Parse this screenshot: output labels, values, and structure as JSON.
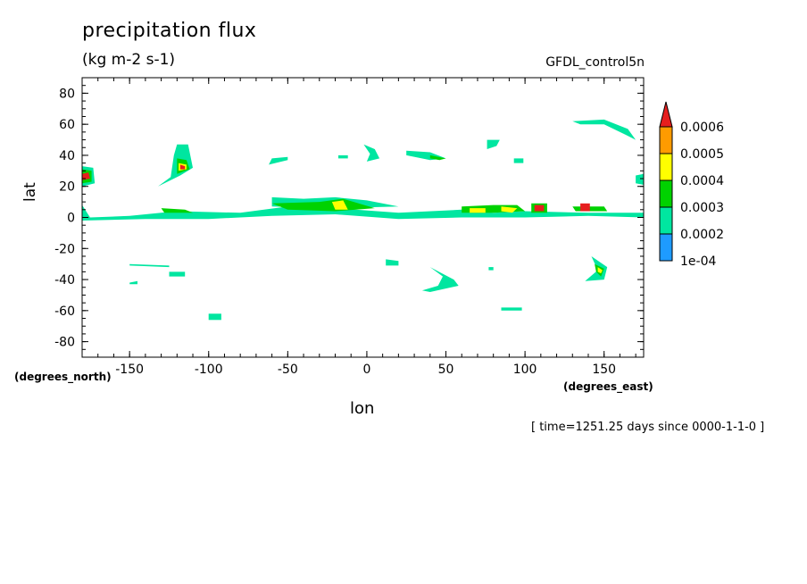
{
  "chart_data": {
    "type": "heatmap",
    "title": "precipitation flux",
    "subtitle": "(kg m-2 s-1)",
    "source_label": "GFDL_control5n",
    "xlabel": "lon",
    "ylabel": "lat",
    "x_units": "(degrees_east)",
    "y_units": "(degrees_north)",
    "time_label": "[ time=1251.25 days since 0000-1-1-0 ]",
    "xlim": [
      -180,
      175
    ],
    "ylim": [
      -90,
      90
    ],
    "x_ticks": [
      "-150",
      "-100",
      "-50",
      "0",
      "50",
      "100",
      "150"
    ],
    "y_ticks": [
      "80",
      "60",
      "40",
      "20",
      "0",
      "-20",
      "-40",
      "-60",
      "-80"
    ],
    "grid": false,
    "colorbar": {
      "labels": [
        "1e-04",
        "0.0002",
        "0.0003",
        "0.0004",
        "0.0005",
        "0.0006"
      ],
      "colors": [
        "#1e9bff",
        "#00e6a0",
        "#00d200",
        "#ffff00",
        "#ff9b00",
        "#e61e1e"
      ]
    },
    "features": [
      {
        "name": "itcz-band",
        "level": 1,
        "points": [
          [
            -180,
            8
          ],
          [
            -175,
            0
          ],
          [
            -150,
            1
          ],
          [
            -140,
            2
          ],
          [
            -120,
            4
          ],
          [
            -80,
            3
          ],
          [
            -50,
            7
          ],
          [
            -20,
            6
          ],
          [
            20,
            3
          ],
          [
            60,
            5
          ],
          [
            80,
            3
          ],
          [
            100,
            4
          ],
          [
            140,
            3
          ],
          [
            175,
            3
          ],
          [
            175,
            0
          ],
          [
            140,
            1
          ],
          [
            100,
            0
          ],
          [
            60,
            0
          ],
          [
            20,
            -1
          ],
          [
            -20,
            2
          ],
          [
            -60,
            1
          ],
          [
            -100,
            -1
          ],
          [
            -140,
            -1
          ],
          [
            -180,
            -2
          ]
        ]
      },
      {
        "name": "itcz-band-upper",
        "level": 1,
        "points": [
          [
            -60,
            13
          ],
          [
            -40,
            12
          ],
          [
            -20,
            13
          ],
          [
            0,
            11
          ],
          [
            20,
            7
          ],
          [
            -20,
            6
          ],
          [
            -60,
            7
          ]
        ]
      },
      {
        "name": "itcz-core-a",
        "level": 2,
        "points": [
          [
            -130,
            6
          ],
          [
            -115,
            5
          ],
          [
            -110,
            3
          ],
          [
            -128,
            3
          ]
        ]
      },
      {
        "name": "itcz-core-b",
        "level": 2,
        "points": [
          [
            -60,
            9
          ],
          [
            -30,
            10
          ],
          [
            -15,
            12
          ],
          [
            5,
            6
          ],
          [
            -20,
            4
          ],
          [
            -50,
            5
          ]
        ]
      },
      {
        "name": "itcz-core-c",
        "level": 2,
        "points": [
          [
            60,
            7
          ],
          [
            80,
            8
          ],
          [
            95,
            8
          ],
          [
            100,
            4
          ],
          [
            80,
            3
          ],
          [
            60,
            3
          ]
        ]
      },
      {
        "name": "itcz-core-d",
        "level": 2,
        "points": [
          [
            130,
            7
          ],
          [
            150,
            7
          ],
          [
            152,
            4
          ],
          [
            132,
            4
          ]
        ]
      },
      {
        "name": "itcz-lime-a",
        "level": 3,
        "points": [
          [
            -22,
            10
          ],
          [
            -15,
            11
          ],
          [
            -12,
            5
          ],
          [
            -20,
            5
          ]
        ]
      },
      {
        "name": "itcz-lime-b",
        "level": 3,
        "points": [
          [
            65,
            6
          ],
          [
            75,
            6
          ],
          [
            75,
            3
          ],
          [
            65,
            3
          ]
        ]
      },
      {
        "name": "itcz-lime-c",
        "level": 3,
        "points": [
          [
            85,
            7
          ],
          [
            95,
            6
          ],
          [
            92,
            3
          ],
          [
            85,
            4
          ]
        ]
      },
      {
        "name": "max-west-edge",
        "level": 5,
        "points": [
          [
            -180,
            28
          ],
          [
            -176,
            29
          ],
          [
            -175,
            25
          ],
          [
            -180,
            24
          ]
        ]
      },
      {
        "name": "west-edge-blob",
        "level": 1,
        "points": [
          [
            -180,
            33
          ],
          [
            -173,
            32
          ],
          [
            -172,
            22
          ],
          [
            -180,
            20
          ]
        ]
      },
      {
        "name": "west-edge-inner",
        "level": 2,
        "points": [
          [
            -180,
            31
          ],
          [
            -174,
            30
          ],
          [
            -174,
            23
          ],
          [
            -180,
            22
          ]
        ]
      },
      {
        "name": "pacific-storm",
        "level": 1,
        "points": [
          [
            -120,
            47
          ],
          [
            -113,
            47
          ],
          [
            -110,
            32
          ],
          [
            -118,
            27
          ],
          [
            -128,
            22
          ],
          [
            -132,
            20
          ],
          [
            -124,
            26
          ],
          [
            -122,
            40
          ]
        ]
      },
      {
        "name": "pacific-storm-inner",
        "level": 2,
        "points": [
          [
            -120,
            38
          ],
          [
            -114,
            37
          ],
          [
            -112,
            31
          ],
          [
            -120,
            28
          ]
        ]
      },
      {
        "name": "pacific-storm-core",
        "level": 3,
        "points": [
          [
            -119,
            35
          ],
          [
            -114,
            34
          ],
          [
            -114,
            31
          ],
          [
            -119,
            30
          ]
        ]
      },
      {
        "name": "pacific-storm-max",
        "level": 5,
        "points": [
          [
            -118,
            34
          ],
          [
            -115,
            33
          ],
          [
            -115,
            31
          ],
          [
            -118,
            31
          ]
        ]
      },
      {
        "name": "atlantic-streak",
        "level": 1,
        "points": [
          [
            -60,
            38
          ],
          [
            -50,
            39
          ],
          [
            -50,
            37
          ],
          [
            -62,
            34
          ]
        ]
      },
      {
        "name": "atlantic-blob",
        "level": 1,
        "points": [
          [
            -18,
            40
          ],
          [
            -12,
            40
          ],
          [
            -12,
            38
          ],
          [
            -18,
            38
          ]
        ]
      },
      {
        "name": "mid-arc",
        "level": 1,
        "points": [
          [
            -2,
            47
          ],
          [
            5,
            44
          ],
          [
            8,
            38
          ],
          [
            0,
            36
          ],
          [
            2,
            41
          ]
        ]
      },
      {
        "name": "eurasia-streak",
        "level": 1,
        "points": [
          [
            25,
            43
          ],
          [
            40,
            42
          ],
          [
            50,
            38
          ],
          [
            40,
            37
          ],
          [
            25,
            40
          ]
        ]
      },
      {
        "name": "eurasia-core",
        "level": 2,
        "points": [
          [
            40,
            40
          ],
          [
            50,
            38
          ],
          [
            46,
            37
          ],
          [
            40,
            38
          ]
        ]
      },
      {
        "name": "north-small",
        "level": 1,
        "points": [
          [
            76,
            50
          ],
          [
            84,
            50
          ],
          [
            82,
            46
          ],
          [
            76,
            44
          ]
        ]
      },
      {
        "name": "north-dot",
        "level": 1,
        "points": [
          [
            93,
            38
          ],
          [
            99,
            38
          ],
          [
            99,
            35
          ],
          [
            93,
            35
          ]
        ]
      },
      {
        "name": "max-east-b",
        "level": 5,
        "points": [
          [
            106,
            8
          ],
          [
            112,
            8
          ],
          [
            112,
            4
          ],
          [
            106,
            4
          ]
        ]
      },
      {
        "name": "east-b-halo",
        "level": 2,
        "points": [
          [
            104,
            9
          ],
          [
            114,
            9
          ],
          [
            114,
            3
          ],
          [
            104,
            3
          ]
        ]
      },
      {
        "name": "max-east-c",
        "level": 5,
        "points": [
          [
            135,
            9
          ],
          [
            141,
            9
          ],
          [
            141,
            4
          ],
          [
            135,
            4
          ]
        ]
      },
      {
        "name": "pacific-arc",
        "level": 1,
        "points": [
          [
            130,
            62
          ],
          [
            150,
            63
          ],
          [
            165,
            57
          ],
          [
            170,
            50
          ],
          [
            164,
            53
          ],
          [
            150,
            60
          ],
          [
            135,
            60
          ]
        ]
      },
      {
        "name": "east-edge",
        "level": 1,
        "points": [
          [
            170,
            27
          ],
          [
            175,
            28
          ],
          [
            175,
            21
          ],
          [
            170,
            22
          ]
        ]
      },
      {
        "name": "south-streak-a",
        "level": 1,
        "points": [
          [
            -150,
            -30
          ],
          [
            -125,
            -31
          ],
          [
            -125,
            -32
          ],
          [
            -150,
            -31
          ]
        ]
      },
      {
        "name": "south-blob-a",
        "level": 1,
        "points": [
          [
            -125,
            -35
          ],
          [
            -115,
            -35
          ],
          [
            -115,
            -38
          ],
          [
            -125,
            -38
          ]
        ]
      },
      {
        "name": "south-blob-b",
        "level": 1,
        "points": [
          [
            -150,
            -42
          ],
          [
            -145,
            -41
          ],
          [
            -145,
            -43
          ],
          [
            -150,
            -43
          ]
        ]
      },
      {
        "name": "south-blob-c",
        "level": 1,
        "points": [
          [
            -100,
            -62
          ],
          [
            -92,
            -62
          ],
          [
            -92,
            -66
          ],
          [
            -100,
            -66
          ]
        ]
      },
      {
        "name": "south-arc",
        "level": 1,
        "points": [
          [
            40,
            -32
          ],
          [
            55,
            -40
          ],
          [
            58,
            -44
          ],
          [
            40,
            -48
          ],
          [
            35,
            -47
          ],
          [
            45,
            -44
          ],
          [
            48,
            -38
          ]
        ]
      },
      {
        "name": "south-blob-d",
        "level": 1,
        "points": [
          [
            12,
            -27
          ],
          [
            20,
            -28
          ],
          [
            20,
            -31
          ],
          [
            12,
            -31
          ]
        ]
      },
      {
        "name": "south-storm",
        "level": 1,
        "points": [
          [
            142,
            -25
          ],
          [
            152,
            -32
          ],
          [
            150,
            -40
          ],
          [
            138,
            -41
          ],
          [
            146,
            -34
          ]
        ]
      },
      {
        "name": "south-storm-core",
        "level": 2,
        "points": [
          [
            144,
            -30
          ],
          [
            150,
            -33
          ],
          [
            148,
            -38
          ],
          [
            145,
            -35
          ]
        ]
      },
      {
        "name": "south-storm-inner",
        "level": 3,
        "points": [
          [
            146,
            -32
          ],
          [
            149,
            -34
          ],
          [
            148,
            -36
          ],
          [
            146,
            -35
          ]
        ]
      },
      {
        "name": "south-dash",
        "level": 1,
        "points": [
          [
            85,
            -58
          ],
          [
            98,
            -58
          ],
          [
            98,
            -60
          ],
          [
            85,
            -60
          ]
        ]
      },
      {
        "name": "south-dot",
        "level": 1,
        "points": [
          [
            77,
            -32
          ],
          [
            80,
            -32
          ],
          [
            80,
            -34
          ],
          [
            77,
            -34
          ]
        ]
      }
    ]
  }
}
